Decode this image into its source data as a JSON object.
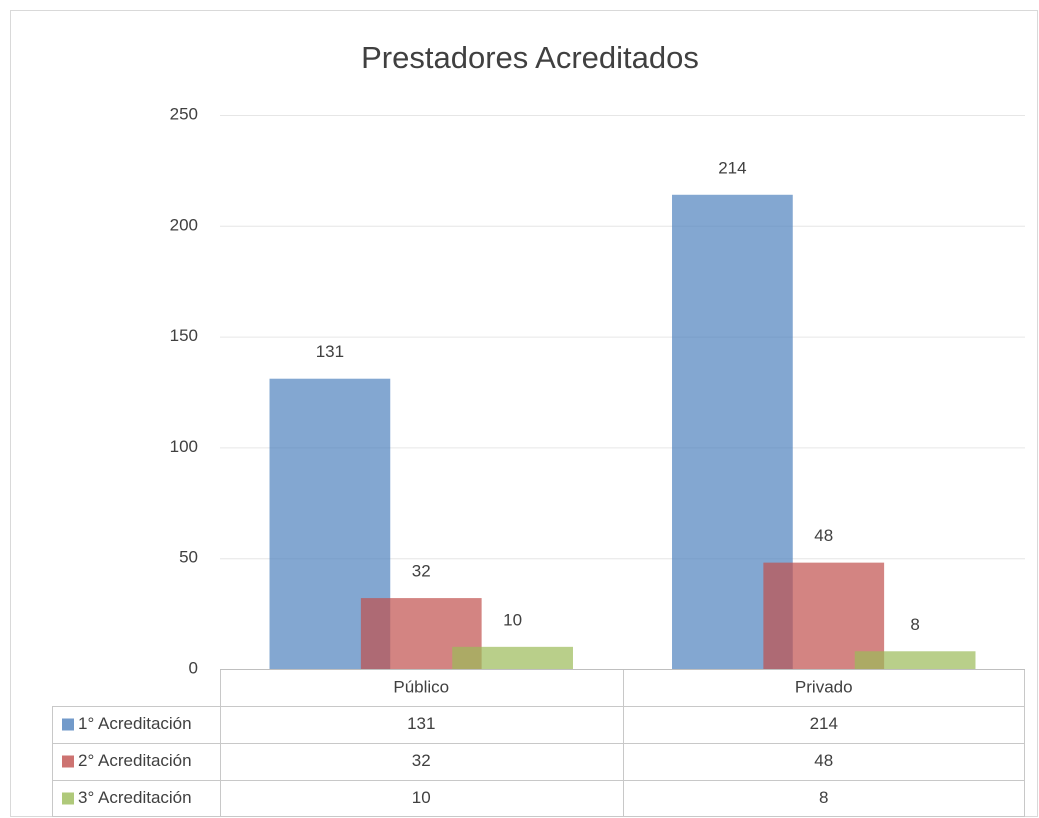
{
  "chart_data": {
    "type": "bar",
    "title": "Prestadores Acreditados",
    "categories": [
      "Público",
      "Privado"
    ],
    "series": [
      {
        "name": "1° Acreditación",
        "color": "#4f81bd",
        "values": [
          131,
          214
        ]
      },
      {
        "name": "2° Acreditación",
        "color": "#c0504d",
        "values": [
          32,
          48
        ]
      },
      {
        "name": "3° Acreditación",
        "color": "#9bbb59",
        "values": [
          10,
          8
        ]
      }
    ],
    "ylim": [
      0,
      250
    ],
    "yticks": [
      0,
      50,
      100,
      150,
      200,
      250
    ],
    "grid": true
  }
}
